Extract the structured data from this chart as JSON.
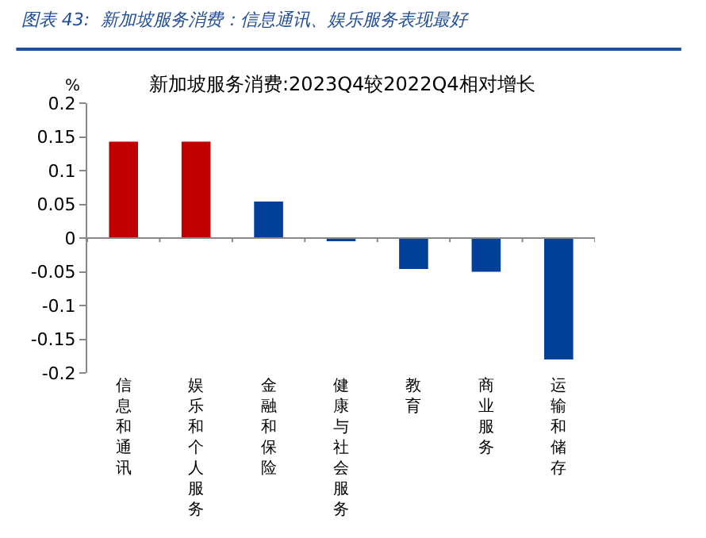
{
  "chart_data": {
    "type": "bar",
    "title": "图表 43:  新加坡服务消费：信息通讯、娱乐服务表现最好",
    "subtitle": "新加坡服务消费:2023Q4较2022Q4相对增长",
    "ylabel": "%",
    "categories": [
      "信息和通讯",
      "娱乐和个人服务",
      "金融和保险",
      "健康与社会服务",
      "教育",
      "商业服务",
      "运输和储存"
    ],
    "values": [
      0.143,
      0.143,
      0.054,
      -0.003,
      -0.046,
      -0.05,
      -0.18
    ],
    "colors": [
      "#c00000",
      "#c00000",
      "#003f9a",
      "#003f9a",
      "#003f9a",
      "#003f9a",
      "#003f9a"
    ],
    "ylim": [
      -0.2,
      0.2
    ],
    "yticks": [
      -0.2,
      -0.15,
      -0.1,
      -0.05,
      0,
      0.05,
      0.1,
      0.15,
      0.2
    ]
  }
}
